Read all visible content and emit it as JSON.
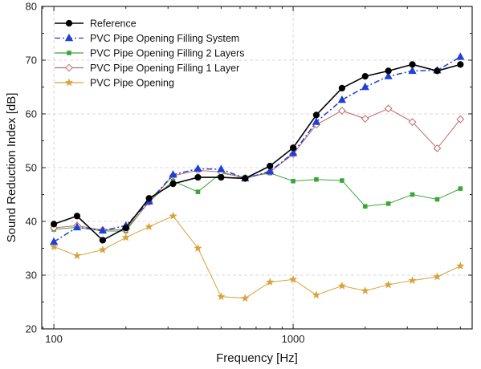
{
  "chart_data": {
    "type": "line",
    "title": "",
    "xlabel": "Frequency [Hz]",
    "ylabel": "Sound Reduction Index [dB]",
    "xscale": "log",
    "xlim": [
      89,
      5600
    ],
    "ylim": [
      20,
      80
    ],
    "grid": true,
    "legend_position": "top-left",
    "x_ticks": [
      100,
      1000
    ],
    "y_ticks": [
      20,
      30,
      40,
      50,
      60,
      70,
      80
    ],
    "x_tick_labels": [
      "100",
      "1000"
    ],
    "y_tick_labels": [
      "20",
      "30",
      "40",
      "50",
      "60",
      "70",
      "80"
    ],
    "x": [
      100,
      125,
      160,
      200,
      250,
      315,
      400,
      500,
      630,
      800,
      1000,
      1250,
      1600,
      2000,
      2500,
      3150,
      4000,
      5000
    ],
    "series": [
      {
        "name": "Reference",
        "color": "#000000",
        "marker": "circle-filled",
        "line": "solid",
        "values": [
          39.5,
          41.0,
          36.5,
          38.8,
          44.3,
          47.0,
          48.2,
          48.2,
          48.0,
          50.3,
          53.7,
          59.8,
          64.8,
          67.0,
          68.0,
          69.2,
          68.0,
          69.2
        ]
      },
      {
        "name": "PVC Pipe Opening Filling System",
        "color": "#1f3fd6",
        "marker": "triangle-filled",
        "line": "dash-dot",
        "values": [
          36.2,
          38.9,
          38.3,
          39.2,
          43.7,
          48.7,
          49.8,
          49.7,
          48.0,
          49.3,
          52.7,
          58.5,
          62.6,
          65.0,
          67.0,
          68.0,
          68.1,
          70.6
        ]
      },
      {
        "name": "PVC Pipe Opening Filling 2 Layers",
        "color": "#3aa63a",
        "marker": "square-filled",
        "line": "solid",
        "values": [
          38.5,
          38.9,
          38.2,
          38.2,
          43.7,
          47.5,
          45.5,
          49.0,
          48.2,
          49.0,
          47.5,
          47.8,
          47.6,
          42.8,
          43.3,
          45.0,
          44.1,
          46.1
        ]
      },
      {
        "name": "PVC Pipe Opening Filling 1 Layer",
        "color": "#c06a6a",
        "marker": "diamond-open",
        "line": "solid",
        "values": [
          38.8,
          39.2,
          38.4,
          38.5,
          43.6,
          48.5,
          49.5,
          49.2,
          48.0,
          49.2,
          52.5,
          58.0,
          60.6,
          59.1,
          61.0,
          58.5,
          53.6,
          59.0
        ]
      },
      {
        "name": "PVC Pipe Opening",
        "color": "#d9a23a",
        "marker": "star-filled",
        "line": "solid",
        "values": [
          35.3,
          33.6,
          34.7,
          37.0,
          39.0,
          41.0,
          35.0,
          26.0,
          25.7,
          28.7,
          29.2,
          26.3,
          28.0,
          27.1,
          28.2,
          29.0,
          29.7,
          31.7
        ]
      }
    ]
  }
}
